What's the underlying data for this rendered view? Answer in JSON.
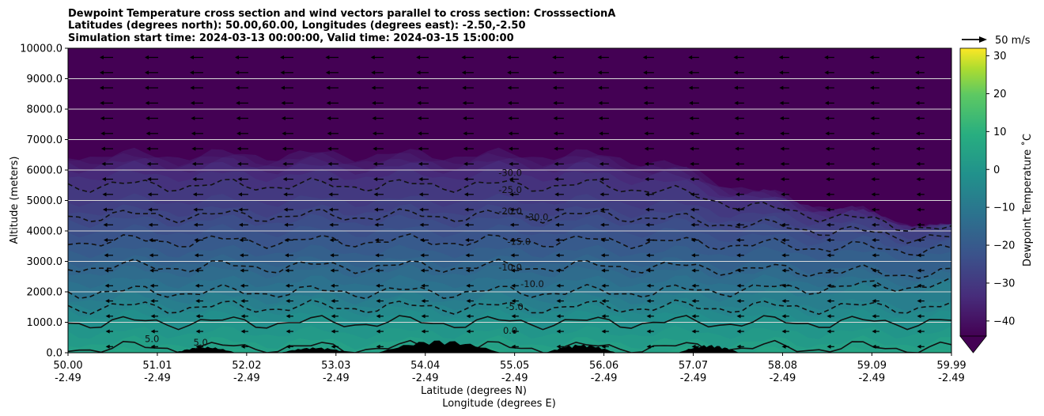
{
  "chart_data": {
    "type": "heatmap",
    "title_lines": [
      "Dewpoint Temperature cross section and wind vectors parallel to cross section: CrosssectionA",
      "Latitudes (degrees north): 50.00,60.00, Longitudes (degrees east): -2.50,-2.50",
      "Simulation start time: 2024-03-13 00:00:00, Valid time: 2024-03-15 15:00:00"
    ],
    "ylabel": "Altitude (meters)",
    "xlabel": "Latitude (degrees N)",
    "xlabel2": "Longitude (degrees E)",
    "xlim": [
      50.0,
      59.99
    ],
    "ylim": [
      0,
      10000
    ],
    "grid": "horizontal",
    "y_ticks": [
      0,
      1000,
      2000,
      3000,
      4000,
      5000,
      6000,
      7000,
      8000,
      9000,
      10000
    ],
    "y_tick_labels": [
      "0.0",
      "1000.0",
      "2000.0",
      "3000.0",
      "4000.0",
      "5000.0",
      "6000.0",
      "7000.0",
      "8000.0",
      "9000.0",
      "10000.0"
    ],
    "x_ticks": [
      50.0,
      51.01,
      52.02,
      53.03,
      54.04,
      55.05,
      56.06,
      57.07,
      58.08,
      59.09,
      59.99
    ],
    "x_tick_labels": [
      "50.00",
      "51.01",
      "52.02",
      "53.03",
      "54.04",
      "55.05",
      "56.06",
      "57.07",
      "58.08",
      "59.09",
      "59.99"
    ],
    "x_tick_labels2": [
      "-2.49",
      "-2.49",
      "-2.49",
      "-2.49",
      "-2.49",
      "-2.49",
      "-2.49",
      "-2.49",
      "-2.49",
      "-2.49",
      "-2.49"
    ],
    "colorbar": {
      "label": "Dewpoint Temperature ˚C",
      "min": -44,
      "max": 32,
      "extend": "min",
      "ticks": [
        -40,
        -30,
        -20,
        -10,
        0,
        10,
        20,
        30
      ],
      "tick_labels": [
        "−40",
        "−30",
        "−20",
        "−10",
        "0",
        "10",
        "20",
        "30"
      ]
    },
    "quiver_key": {
      "label": "50 m/s",
      "speed": 50
    },
    "contour_labels": [
      {
        "text": "-30.0",
        "x": 55.0,
        "y": 5800
      },
      {
        "text": "-25.0",
        "x": 55.0,
        "y": 5250
      },
      {
        "text": "-20.0",
        "x": 55.0,
        "y": 4550
      },
      {
        "text": "-30.0",
        "x": 55.3,
        "y": 4350
      },
      {
        "text": "-15.0",
        "x": 55.1,
        "y": 3550
      },
      {
        "text": "-10.0",
        "x": 55.0,
        "y": 2700
      },
      {
        "text": "-10.0",
        "x": 55.25,
        "y": 2150
      },
      {
        "text": "-5.0",
        "x": 55.05,
        "y": 1400
      },
      {
        "text": "0.0",
        "x": 55.0,
        "y": 620
      },
      {
        "text": "5.0",
        "x": 50.95,
        "y": 350
      },
      {
        "text": "5.0",
        "x": 51.5,
        "y": 230
      }
    ],
    "dewpoint_profile_levels": {
      "altitude_m": [
        0,
        500,
        1000,
        1500,
        2000,
        2500,
        3000,
        3500,
        4000,
        4500,
        5000,
        5500,
        6000,
        6500,
        7000
      ],
      "dewpoint_C": [
        6,
        3,
        0,
        -5,
        -10,
        -13,
        -16,
        -19,
        -22,
        -25,
        -28,
        -30,
        -33,
        -40,
        -44
      ]
    }
  }
}
